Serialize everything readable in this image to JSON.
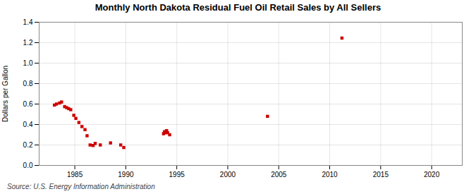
{
  "chart_data": {
    "type": "scatter",
    "title": "Monthly North Dakota Residual Fuel Oil Retail Sales by All Sellers",
    "ylabel": "Dollars per Gallon",
    "source": "Source: U.S. Energy Information Administration",
    "x": [
      1983.0,
      1983.2,
      1983.5,
      1983.7,
      1984.0,
      1984.2,
      1984.4,
      1984.6,
      1984.9,
      1985.1,
      1985.4,
      1985.7,
      1986.0,
      1986.2,
      1986.5,
      1986.8,
      1987.0,
      1987.5,
      1988.5,
      1989.5,
      1989.8,
      1993.7,
      1993.8,
      1993.9,
      1994.0,
      1994.1,
      1994.3,
      2003.9,
      2011.2
    ],
    "values": [
      0.59,
      0.6,
      0.61,
      0.62,
      0.575,
      0.565,
      0.555,
      0.545,
      0.49,
      0.46,
      0.42,
      0.38,
      0.35,
      0.29,
      0.2,
      0.195,
      0.215,
      0.2,
      0.22,
      0.2,
      0.175,
      0.31,
      0.33,
      0.32,
      0.34,
      0.32,
      0.3,
      0.48,
      1.245
    ],
    "color": "#cc0000",
    "marker": "square",
    "xlim": [
      1981.5,
      2023
    ],
    "ylim": [
      0.0,
      1.4
    ],
    "xticks": [
      1985,
      1990,
      1995,
      2000,
      2005,
      2010,
      2015,
      2020
    ],
    "yticks": [
      {
        "value": 0.0,
        "label": "0.0"
      },
      0.2,
      0.4,
      0.6,
      0.8,
      {
        "value": 1.0,
        "label": "1.0"
      },
      1.2,
      1.4
    ],
    "grid": true
  }
}
